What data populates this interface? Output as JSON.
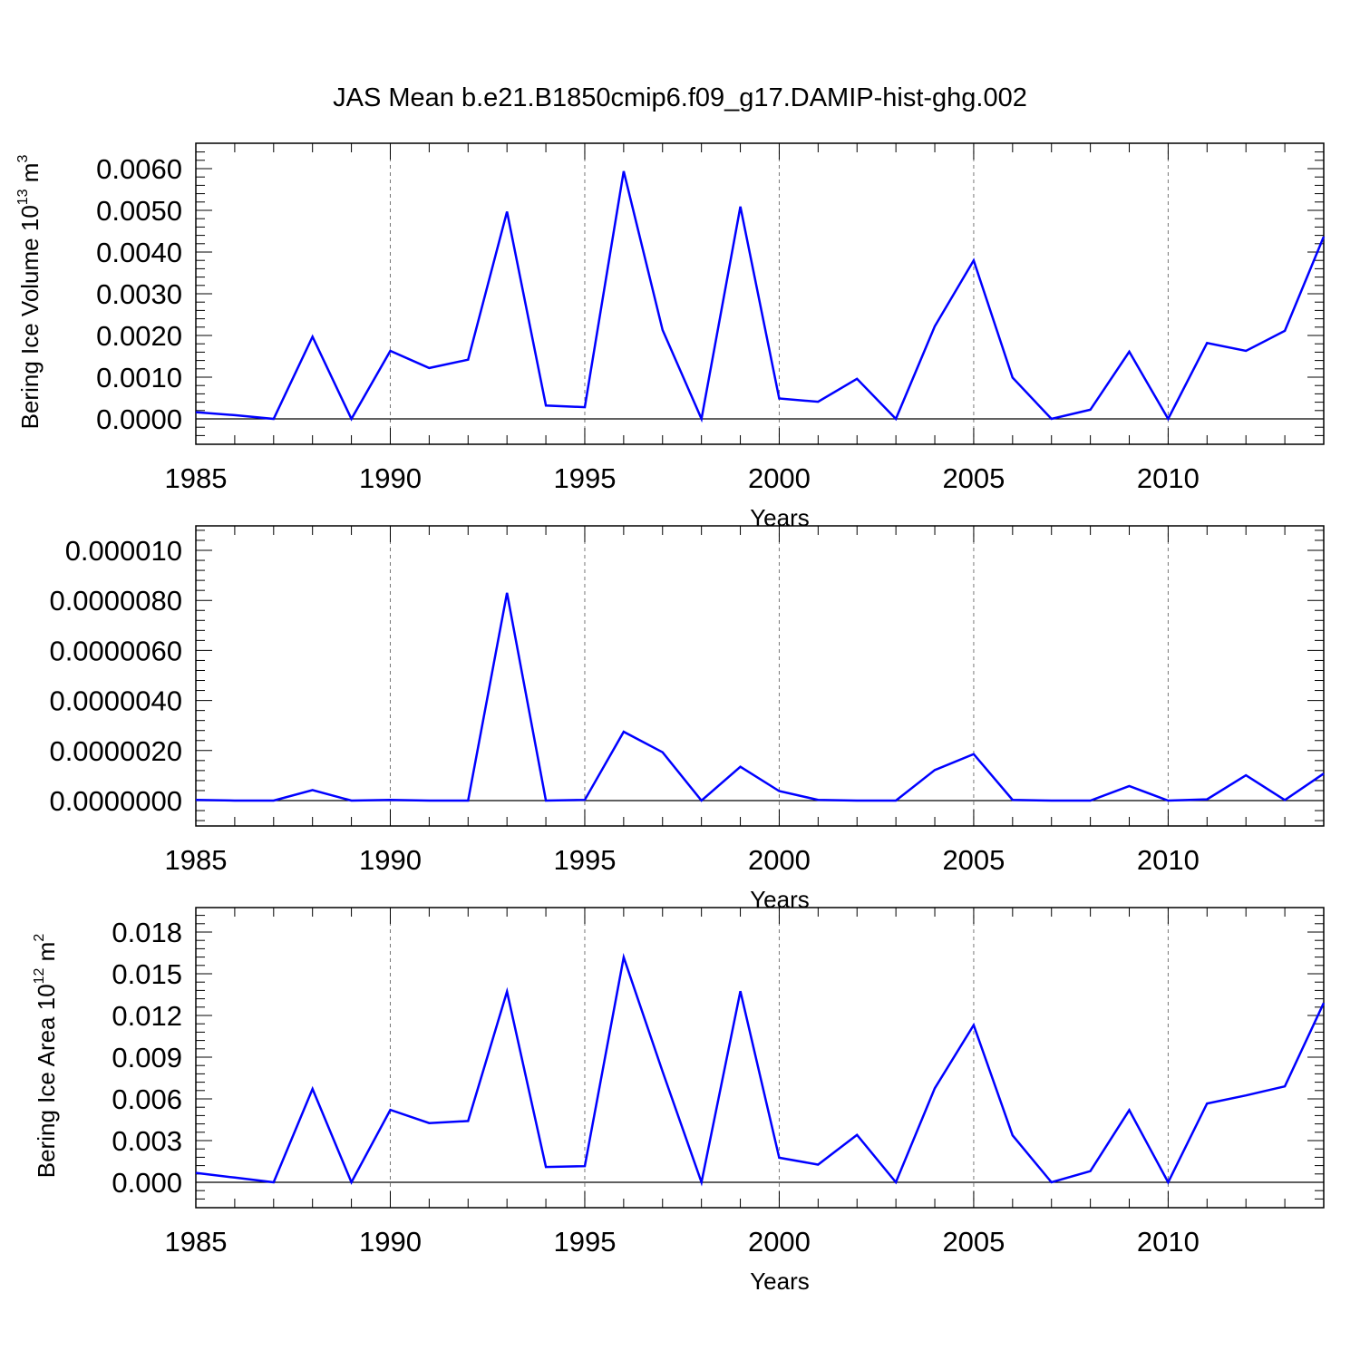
{
  "figure": {
    "title": "JAS Mean b.e21.B1850cmip6.f09_g17.DAMIP-hist-ghg.002",
    "line_color": "#0000ff",
    "grid_color": "#777777"
  },
  "chart_data": [
    {
      "type": "line",
      "title": "",
      "xlabel": "Years",
      "ylabel": "Bering Ice Volume 10",
      "ylabel_sup": "13",
      "ylabel_unit": "m",
      "ylabel_unit_sup": "3",
      "xlim": [
        1985,
        2014
      ],
      "ylim": [
        0,
        0.006
      ],
      "xticks": [
        1985,
        1990,
        1995,
        2000,
        2005,
        2010
      ],
      "yticks": [
        "0.0000",
        "0.0010",
        "0.0020",
        "0.0030",
        "0.0040",
        "0.0050",
        "0.0060"
      ],
      "grid": "vertical dashed at major x ticks",
      "x": [
        1985,
        1986,
        1987,
        1988,
        1989,
        1990,
        1991,
        1992,
        1993,
        1994,
        1995,
        1996,
        1997,
        1998,
        1999,
        2000,
        2001,
        2002,
        2003,
        2004,
        2005,
        2006,
        2007,
        2008,
        2009,
        2010,
        2011,
        2012,
        2013,
        2014
      ],
      "values": [
        0.00016,
        9e-05,
        0.0,
        0.00197,
        0.0,
        0.00163,
        0.00122,
        0.00142,
        0.00497,
        0.00032,
        0.00028,
        0.00594,
        0.00213,
        0.0,
        0.00509,
        0.00049,
        0.00041,
        0.00096,
        0.0,
        0.00222,
        0.0038,
        0.00099,
        0.0,
        0.00022,
        0.00161,
        0.0,
        0.00182,
        0.00163,
        0.00211,
        0.00437
      ]
    },
    {
      "type": "line",
      "title": "",
      "xlabel": "Years",
      "ylabel": "",
      "xlim": [
        1985,
        2014
      ],
      "ylim": [
        0,
        1e-05
      ],
      "xticks": [
        1985,
        1990,
        1995,
        2000,
        2005,
        2010
      ],
      "yticks": [
        "0.0000000",
        "0.0000020",
        "0.0000040",
        "0.0000060",
        "0.0000080",
        "0.000010"
      ],
      "grid": "vertical dashed at major x ticks",
      "x": [
        1985,
        1986,
        1987,
        1988,
        1989,
        1990,
        1991,
        1992,
        1993,
        1994,
        1995,
        1996,
        1997,
        1998,
        1999,
        2000,
        2001,
        2002,
        2003,
        2004,
        2005,
        2006,
        2007,
        2008,
        2009,
        2010,
        2011,
        2012,
        2013,
        2014
      ],
      "values": [
        3e-08,
        0.0,
        0.0,
        4.2e-07,
        0.0,
        3e-08,
        0.0,
        0.0,
        8.3e-06,
        0.0,
        3e-08,
        2.75e-06,
        1.93e-06,
        0.0,
        1.35e-06,
        3.8e-07,
        3e-08,
        0.0,
        0.0,
        1.22e-06,
        1.86e-06,
        3e-08,
        0.0,
        0.0,
        5.8e-07,
        0.0,
        5e-08,
        1.01e-06,
        2e-08,
        1.08e-06
      ]
    },
    {
      "type": "line",
      "title": "",
      "xlabel": "Years",
      "ylabel": "Bering Ice Area 10",
      "ylabel_sup": "12",
      "ylabel_unit": "m",
      "ylabel_unit_sup": "2",
      "xlim": [
        1985,
        2014
      ],
      "ylim": [
        0,
        0.018
      ],
      "xticks": [
        1985,
        1990,
        1995,
        2000,
        2005,
        2010
      ],
      "yticks": [
        "0.000",
        "0.003",
        "0.006",
        "0.009",
        "0.012",
        "0.015",
        "0.018"
      ],
      "grid": "vertical dashed at major x ticks",
      "x": [
        1985,
        1986,
        1987,
        1988,
        1989,
        1990,
        1991,
        1992,
        1993,
        1994,
        1995,
        1996,
        1997,
        1998,
        1999,
        2000,
        2001,
        2002,
        2003,
        2004,
        2005,
        2006,
        2007,
        2008,
        2009,
        2010,
        2011,
        2012,
        2013,
        2014
      ],
      "values": [
        0.00068,
        0.00034,
        0.0,
        0.00672,
        0.0,
        0.00521,
        0.00426,
        0.00441,
        0.01372,
        0.0011,
        0.00116,
        0.01619,
        0.00796,
        0.0,
        0.01375,
        0.00177,
        0.00127,
        0.00341,
        0.0,
        0.00676,
        0.01131,
        0.00338,
        0.0,
        0.0008,
        0.00519,
        0.0,
        0.00567,
        0.00625,
        0.0069,
        0.0129
      ]
    }
  ]
}
